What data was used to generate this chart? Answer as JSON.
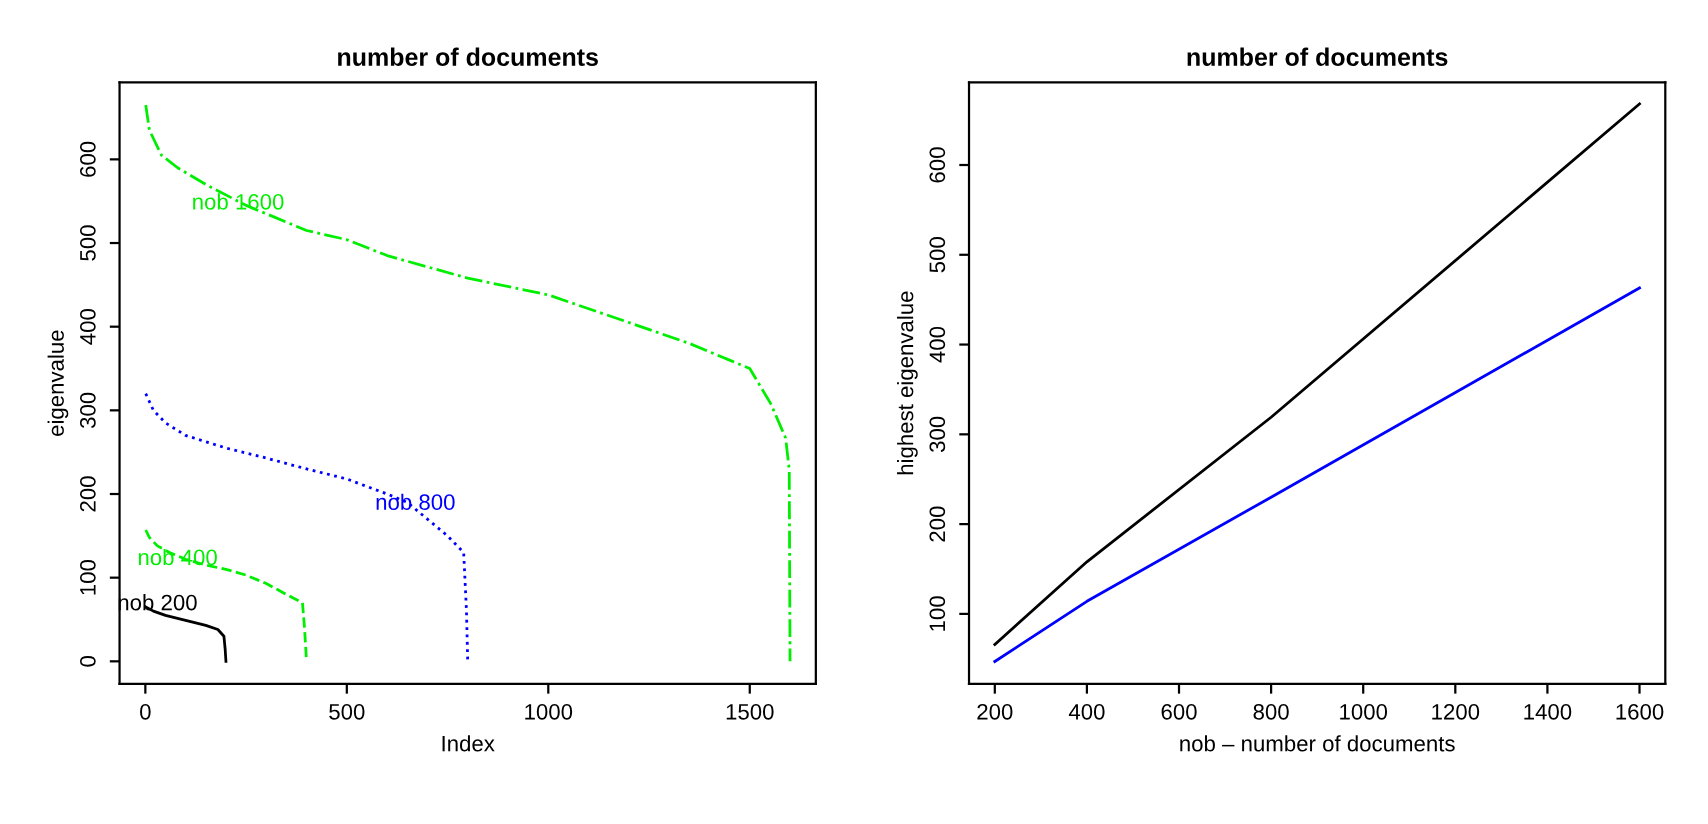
{
  "chart_data": [
    {
      "type": "line",
      "title": "number of documents",
      "xlabel": "Index",
      "ylabel": "eigenvalue",
      "xlim": [
        -64,
        1664
      ],
      "ylim": [
        -27,
        692
      ],
      "xticks": [
        0,
        500,
        1000,
        1500
      ],
      "yticks": [
        0,
        100,
        200,
        300,
        400,
        500,
        600
      ],
      "grid": false,
      "legend": false,
      "series": [
        {
          "color": "#000000",
          "line_style": "solid",
          "x": [
            1,
            20,
            50,
            100,
            150,
            180,
            195,
            198,
            200
          ],
          "values": [
            65,
            60,
            55,
            49,
            43,
            38,
            30,
            15,
            0
          ]
        },
        {
          "color": "#00ee00",
          "line_style": "dashed",
          "x": [
            1,
            10,
            30,
            60,
            100,
            150,
            200,
            250,
            300,
            350,
            390,
            395,
            400
          ],
          "values": [
            157,
            148,
            138,
            130,
            122,
            115,
            110,
            103,
            93,
            80,
            70,
            40,
            0
          ]
        },
        {
          "color": "#0000ff",
          "line_style": "dotted",
          "x": [
            1,
            20,
            50,
            100,
            200,
            300,
            400,
            500,
            600,
            650,
            700,
            750,
            790,
            797,
            800
          ],
          "values": [
            320,
            300,
            285,
            270,
            255,
            243,
            230,
            218,
            200,
            190,
            170,
            150,
            130,
            60,
            0
          ]
        },
        {
          "color": "#00ee00",
          "line_style": "dashdot",
          "x": [
            1,
            10,
            40,
            80,
            150,
            250,
            400,
            500,
            600,
            800,
            1000,
            1200,
            1350,
            1450,
            1500,
            1552,
            1589,
            1598,
            1600
          ],
          "values": [
            665,
            635,
            605,
            590,
            570,
            545,
            515,
            504,
            485,
            458,
            438,
            405,
            380,
            360,
            350,
            308,
            267,
            229,
            0
          ]
        }
      ],
      "annotations": [
        {
          "text": "nob 200",
          "x": 30,
          "y": 68
        },
        {
          "text": "nob 400",
          "x": 80,
          "y": 122
        },
        {
          "text": "nob 800",
          "x": 670,
          "y": 188
        },
        {
          "text": "nob 1600",
          "x": 230,
          "y": 547
        }
      ]
    },
    {
      "type": "line",
      "title": "number of documents",
      "xlabel": "nob – number of documents",
      "ylabel": "highest eigenvalue",
      "xlim": [
        144,
        1656
      ],
      "ylim": [
        22,
        692
      ],
      "xticks": [
        200,
        400,
        600,
        800,
        1000,
        1200,
        1400,
        1600
      ],
      "yticks": [
        100,
        200,
        300,
        400,
        500,
        600
      ],
      "grid": false,
      "legend": false,
      "series": [
        {
          "color": "#000000",
          "line_style": "solid",
          "x": [
            200,
            400,
            800,
            1600
          ],
          "values": [
            66,
            158,
            319,
            668
          ]
        },
        {
          "color": "#0000ff",
          "line_style": "solid",
          "x": [
            200,
            400,
            800,
            1600
          ],
          "values": [
            47,
            114,
            230,
            463
          ]
        }
      ]
    }
  ]
}
